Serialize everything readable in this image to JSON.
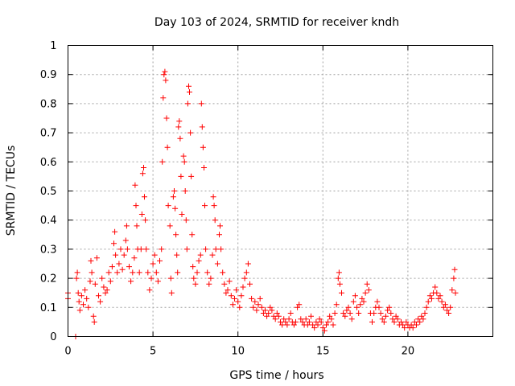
{
  "chart_data": {
    "type": "scatter",
    "title": "Day 103 of 2024, SRMTID for receiver kndh",
    "xlabel": "GPS time / hours",
    "ylabel": "SRMTID / TECUs",
    "xlim": [
      0,
      25
    ],
    "ylim": [
      0,
      1
    ],
    "xticks": [
      0,
      5,
      10,
      15,
      20
    ],
    "xtick_labels": [
      "0",
      "5",
      "10",
      "15",
      "20"
    ],
    "yticks": [
      0,
      0.1,
      0.2,
      0.3,
      0.4,
      0.5,
      0.6,
      0.7,
      0.8,
      0.9,
      1
    ],
    "ytick_labels": [
      "0",
      "0.1",
      "0.2",
      "0.3",
      "0.4",
      "0.5",
      "0.6",
      "0.7",
      "0.8",
      "0.9",
      "1"
    ],
    "grid": true,
    "marker": "+",
    "color": "#ff0000",
    "series": [
      {
        "name": "SRMTID",
        "points": [
          [
            0.0,
            0.15
          ],
          [
            0.0,
            0.13
          ],
          [
            0.45,
            0.0
          ],
          [
            0.5,
            0.2
          ],
          [
            0.55,
            0.22
          ],
          [
            0.6,
            0.15
          ],
          [
            0.65,
            0.12
          ],
          [
            0.7,
            0.09
          ],
          [
            0.8,
            0.14
          ],
          [
            0.9,
            0.11
          ],
          [
            1.0,
            0.16
          ],
          [
            1.1,
            0.13
          ],
          [
            1.2,
            0.1
          ],
          [
            1.3,
            0.19
          ],
          [
            1.35,
            0.26
          ],
          [
            1.4,
            0.22
          ],
          [
            1.5,
            0.07
          ],
          [
            1.55,
            0.05
          ],
          [
            1.6,
            0.18
          ],
          [
            1.7,
            0.27
          ],
          [
            1.8,
            0.14
          ],
          [
            1.9,
            0.12
          ],
          [
            2.0,
            0.2
          ],
          [
            2.1,
            0.17
          ],
          [
            2.2,
            0.15
          ],
          [
            2.3,
            0.16
          ],
          [
            2.4,
            0.22
          ],
          [
            2.5,
            0.19
          ],
          [
            2.6,
            0.24
          ],
          [
            2.7,
            0.32
          ],
          [
            2.75,
            0.36
          ],
          [
            2.8,
            0.28
          ],
          [
            2.9,
            0.22
          ],
          [
            3.0,
            0.25
          ],
          [
            3.1,
            0.3
          ],
          [
            3.2,
            0.23
          ],
          [
            3.3,
            0.28
          ],
          [
            3.4,
            0.33
          ],
          [
            3.45,
            0.38
          ],
          [
            3.5,
            0.3
          ],
          [
            3.6,
            0.24
          ],
          [
            3.7,
            0.19
          ],
          [
            3.8,
            0.22
          ],
          [
            3.9,
            0.27
          ],
          [
            3.95,
            0.52
          ],
          [
            4.0,
            0.45
          ],
          [
            4.05,
            0.38
          ],
          [
            4.1,
            0.3
          ],
          [
            4.2,
            0.22
          ],
          [
            4.3,
            0.3
          ],
          [
            4.35,
            0.42
          ],
          [
            4.4,
            0.56
          ],
          [
            4.45,
            0.58
          ],
          [
            4.5,
            0.48
          ],
          [
            4.55,
            0.4
          ],
          [
            4.6,
            0.3
          ],
          [
            4.7,
            0.22
          ],
          [
            4.8,
            0.16
          ],
          [
            4.9,
            0.2
          ],
          [
            5.0,
            0.25
          ],
          [
            5.1,
            0.28
          ],
          [
            5.2,
            0.22
          ],
          [
            5.3,
            0.19
          ],
          [
            5.4,
            0.26
          ],
          [
            5.5,
            0.3
          ],
          [
            5.55,
            0.6
          ],
          [
            5.6,
            0.82
          ],
          [
            5.65,
            0.9
          ],
          [
            5.7,
            0.91
          ],
          [
            5.75,
            0.88
          ],
          [
            5.8,
            0.75
          ],
          [
            5.85,
            0.65
          ],
          [
            5.9,
            0.45
          ],
          [
            6.0,
            0.38
          ],
          [
            6.05,
            0.2
          ],
          [
            6.1,
            0.15
          ],
          [
            6.2,
            0.48
          ],
          [
            6.25,
            0.5
          ],
          [
            6.3,
            0.44
          ],
          [
            6.35,
            0.35
          ],
          [
            6.4,
            0.28
          ],
          [
            6.45,
            0.22
          ],
          [
            6.5,
            0.72
          ],
          [
            6.55,
            0.74
          ],
          [
            6.6,
            0.68
          ],
          [
            6.65,
            0.55
          ],
          [
            6.7,
            0.42
          ],
          [
            6.8,
            0.62
          ],
          [
            6.85,
            0.6
          ],
          [
            6.9,
            0.5
          ],
          [
            6.95,
            0.4
          ],
          [
            7.0,
            0.3
          ],
          [
            7.05,
            0.8
          ],
          [
            7.1,
            0.86
          ],
          [
            7.15,
            0.84
          ],
          [
            7.2,
            0.7
          ],
          [
            7.25,
            0.55
          ],
          [
            7.3,
            0.35
          ],
          [
            7.35,
            0.24
          ],
          [
            7.4,
            0.2
          ],
          [
            7.5,
            0.18
          ],
          [
            7.6,
            0.22
          ],
          [
            7.7,
            0.26
          ],
          [
            7.8,
            0.28
          ],
          [
            7.85,
            0.8
          ],
          [
            7.9,
            0.72
          ],
          [
            7.95,
            0.65
          ],
          [
            8.0,
            0.58
          ],
          [
            8.05,
            0.45
          ],
          [
            8.1,
            0.3
          ],
          [
            8.2,
            0.22
          ],
          [
            8.3,
            0.18
          ],
          [
            8.4,
            0.2
          ],
          [
            8.5,
            0.28
          ],
          [
            8.55,
            0.48
          ],
          [
            8.6,
            0.45
          ],
          [
            8.65,
            0.4
          ],
          [
            8.7,
            0.3
          ],
          [
            8.8,
            0.25
          ],
          [
            8.9,
            0.35
          ],
          [
            8.95,
            0.38
          ],
          [
            9.0,
            0.3
          ],
          [
            9.1,
            0.22
          ],
          [
            9.2,
            0.18
          ],
          [
            9.3,
            0.15
          ],
          [
            9.4,
            0.16
          ],
          [
            9.5,
            0.19
          ],
          [
            9.6,
            0.14
          ],
          [
            9.7,
            0.11
          ],
          [
            9.8,
            0.13
          ],
          [
            9.9,
            0.16
          ],
          [
            10.0,
            0.12
          ],
          [
            10.1,
            0.1
          ],
          [
            10.2,
            0.14
          ],
          [
            10.3,
            0.17
          ],
          [
            10.4,
            0.2
          ],
          [
            10.5,
            0.22
          ],
          [
            10.6,
            0.25
          ],
          [
            10.7,
            0.18
          ],
          [
            10.8,
            0.13
          ],
          [
            10.9,
            0.1
          ],
          [
            11.0,
            0.12
          ],
          [
            11.1,
            0.09
          ],
          [
            11.2,
            0.11
          ],
          [
            11.3,
            0.13
          ],
          [
            11.4,
            0.1
          ],
          [
            11.5,
            0.08
          ],
          [
            11.6,
            0.09
          ],
          [
            11.7,
            0.07
          ],
          [
            11.8,
            0.08
          ],
          [
            11.9,
            0.1
          ],
          [
            12.0,
            0.09
          ],
          [
            12.1,
            0.07
          ],
          [
            12.2,
            0.06
          ],
          [
            12.3,
            0.08
          ],
          [
            12.4,
            0.07
          ],
          [
            12.5,
            0.05
          ],
          [
            12.6,
            0.04
          ],
          [
            12.7,
            0.06
          ],
          [
            12.8,
            0.05
          ],
          [
            12.9,
            0.04
          ],
          [
            13.0,
            0.06
          ],
          [
            13.1,
            0.08
          ],
          [
            13.2,
            0.05
          ],
          [
            13.3,
            0.04
          ],
          [
            13.4,
            0.05
          ],
          [
            13.5,
            0.1
          ],
          [
            13.6,
            0.11
          ],
          [
            13.7,
            0.06
          ],
          [
            13.8,
            0.05
          ],
          [
            13.9,
            0.04
          ],
          [
            14.0,
            0.06
          ],
          [
            14.1,
            0.04
          ],
          [
            14.2,
            0.05
          ],
          [
            14.3,
            0.07
          ],
          [
            14.4,
            0.04
          ],
          [
            14.5,
            0.03
          ],
          [
            14.6,
            0.05
          ],
          [
            14.7,
            0.04
          ],
          [
            14.8,
            0.06
          ],
          [
            14.9,
            0.05
          ],
          [
            15.0,
            0.03
          ],
          [
            15.1,
            0.02
          ],
          [
            15.2,
            0.04
          ],
          [
            15.3,
            0.05
          ],
          [
            15.4,
            0.07
          ],
          [
            15.5,
            0.06
          ],
          [
            15.6,
            0.04
          ],
          [
            15.7,
            0.08
          ],
          [
            15.8,
            0.11
          ],
          [
            15.9,
            0.2
          ],
          [
            15.95,
            0.22
          ],
          [
            16.0,
            0.18
          ],
          [
            16.1,
            0.15
          ],
          [
            16.2,
            0.08
          ],
          [
            16.3,
            0.07
          ],
          [
            16.4,
            0.09
          ],
          [
            16.5,
            0.1
          ],
          [
            16.6,
            0.08
          ],
          [
            16.7,
            0.06
          ],
          [
            16.8,
            0.12
          ],
          [
            16.9,
            0.14
          ],
          [
            17.0,
            0.1
          ],
          [
            17.1,
            0.08
          ],
          [
            17.2,
            0.11
          ],
          [
            17.3,
            0.13
          ],
          [
            17.4,
            0.12
          ],
          [
            17.5,
            0.15
          ],
          [
            17.6,
            0.18
          ],
          [
            17.7,
            0.16
          ],
          [
            17.8,
            0.08
          ],
          [
            17.9,
            0.05
          ],
          [
            18.0,
            0.08
          ],
          [
            18.1,
            0.1
          ],
          [
            18.2,
            0.12
          ],
          [
            18.3,
            0.1
          ],
          [
            18.4,
            0.08
          ],
          [
            18.5,
            0.06
          ],
          [
            18.6,
            0.05
          ],
          [
            18.7,
            0.07
          ],
          [
            18.8,
            0.09
          ],
          [
            18.9,
            0.1
          ],
          [
            19.0,
            0.08
          ],
          [
            19.1,
            0.06
          ],
          [
            19.2,
            0.05
          ],
          [
            19.3,
            0.07
          ],
          [
            19.4,
            0.06
          ],
          [
            19.5,
            0.04
          ],
          [
            19.6,
            0.05
          ],
          [
            19.7,
            0.04
          ],
          [
            19.8,
            0.03
          ],
          [
            19.9,
            0.05
          ],
          [
            20.0,
            0.04
          ],
          [
            20.1,
            0.03
          ],
          [
            20.2,
            0.04
          ],
          [
            20.3,
            0.03
          ],
          [
            20.4,
            0.05
          ],
          [
            20.5,
            0.04
          ],
          [
            20.6,
            0.06
          ],
          [
            20.7,
            0.05
          ],
          [
            20.8,
            0.07
          ],
          [
            20.9,
            0.06
          ],
          [
            21.0,
            0.08
          ],
          [
            21.1,
            0.1
          ],
          [
            21.2,
            0.12
          ],
          [
            21.3,
            0.14
          ],
          [
            21.4,
            0.13
          ],
          [
            21.5,
            0.15
          ],
          [
            21.6,
            0.17
          ],
          [
            21.7,
            0.15
          ],
          [
            21.8,
            0.13
          ],
          [
            21.9,
            0.14
          ],
          [
            22.0,
            0.12
          ],
          [
            22.1,
            0.1
          ],
          [
            22.2,
            0.11
          ],
          [
            22.3,
            0.09
          ],
          [
            22.4,
            0.08
          ],
          [
            22.5,
            0.1
          ],
          [
            22.6,
            0.16
          ],
          [
            22.7,
            0.2
          ],
          [
            22.75,
            0.23
          ],
          [
            22.8,
            0.15
          ]
        ]
      }
    ]
  }
}
